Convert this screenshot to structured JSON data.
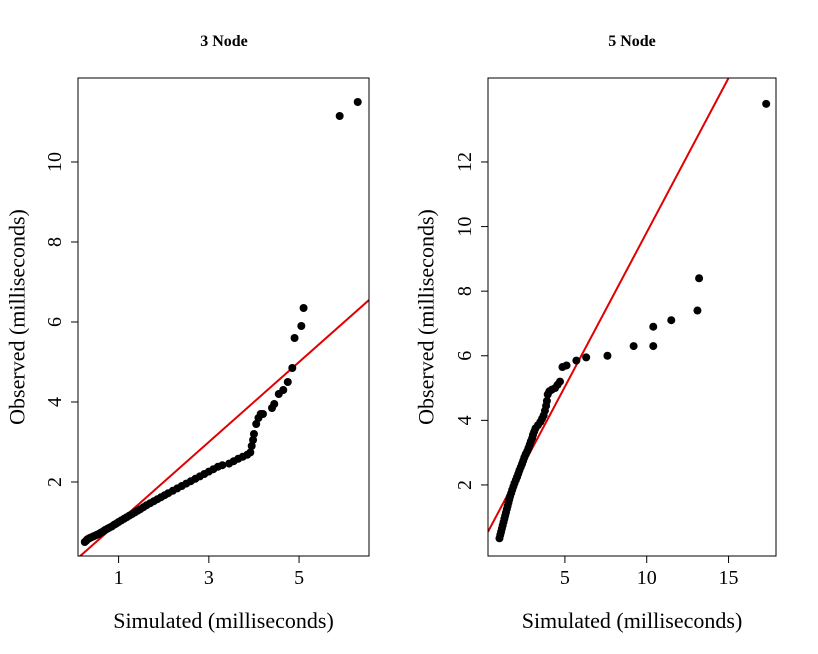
{
  "chart_data": [
    {
      "type": "scatter",
      "title": "3 Node",
      "xlabel": "Simulated (milliseconds)",
      "ylabel": "Observed (milliseconds)",
      "xlim": [
        0.1,
        6.55
      ],
      "ylim": [
        0.15,
        12.1
      ],
      "xticks": [
        1,
        3,
        5
      ],
      "yticks": [
        2,
        4,
        6,
        8,
        10
      ],
      "grid": false,
      "reference_line": {
        "color": "#e00000",
        "points": [
          [
            0.1,
            0.1
          ],
          [
            6.55,
            6.55
          ]
        ]
      },
      "point_color": "#000000",
      "series": [
        {
          "points": [
            [
              0.25,
              0.5
            ],
            [
              0.28,
              0.53
            ],
            [
              0.3,
              0.56
            ],
            [
              0.33,
              0.58
            ],
            [
              0.36,
              0.6
            ],
            [
              0.4,
              0.62
            ],
            [
              0.44,
              0.64
            ],
            [
              0.48,
              0.66
            ],
            [
              0.52,
              0.68
            ],
            [
              0.56,
              0.7
            ],
            [
              0.6,
              0.73
            ],
            [
              0.65,
              0.76
            ],
            [
              0.7,
              0.8
            ],
            [
              0.75,
              0.83
            ],
            [
              0.8,
              0.86
            ],
            [
              0.85,
              0.89
            ],
            [
              0.9,
              0.93
            ],
            [
              0.95,
              0.96
            ],
            [
              1.0,
              1.0
            ],
            [
              1.06,
              1.04
            ],
            [
              1.12,
              1.08
            ],
            [
              1.18,
              1.12
            ],
            [
              1.24,
              1.16
            ],
            [
              1.3,
              1.2
            ],
            [
              1.36,
              1.24
            ],
            [
              1.42,
              1.28
            ],
            [
              1.48,
              1.32
            ],
            [
              1.55,
              1.37
            ],
            [
              1.62,
              1.42
            ],
            [
              1.7,
              1.47
            ],
            [
              1.78,
              1.52
            ],
            [
              1.86,
              1.57
            ],
            [
              1.94,
              1.62
            ],
            [
              2.02,
              1.67
            ],
            [
              2.1,
              1.72
            ],
            [
              2.2,
              1.78
            ],
            [
              2.3,
              1.84
            ],
            [
              2.4,
              1.9
            ],
            [
              2.5,
              1.96
            ],
            [
              2.6,
              2.02
            ],
            [
              2.7,
              2.08
            ],
            [
              2.8,
              2.14
            ],
            [
              2.9,
              2.2
            ],
            [
              3.0,
              2.26
            ],
            [
              3.1,
              2.32
            ],
            [
              3.2,
              2.38
            ],
            [
              3.3,
              2.42
            ],
            [
              3.45,
              2.46
            ],
            [
              3.55,
              2.52
            ],
            [
              3.65,
              2.58
            ],
            [
              3.75,
              2.63
            ],
            [
              3.85,
              2.68
            ],
            [
              3.92,
              2.74
            ],
            [
              3.95,
              2.9
            ],
            [
              3.98,
              3.05
            ],
            [
              4.0,
              3.2
            ],
            [
              4.05,
              3.45
            ],
            [
              4.1,
              3.6
            ],
            [
              4.15,
              3.7
            ],
            [
              4.2,
              3.7
            ],
            [
              4.4,
              3.85
            ],
            [
              4.45,
              3.95
            ],
            [
              4.55,
              4.2
            ],
            [
              4.65,
              4.3
            ],
            [
              4.75,
              4.5
            ],
            [
              4.85,
              4.85
            ],
            [
              4.9,
              5.6
            ],
            [
              5.05,
              5.9
            ],
            [
              5.1,
              6.35
            ],
            [
              5.9,
              11.15
            ],
            [
              6.3,
              11.5
            ]
          ]
        }
      ]
    },
    {
      "type": "scatter",
      "title": "5 Node",
      "xlabel": "Simulated (milliseconds)",
      "ylabel": "Observed (milliseconds)",
      "xlim": [
        0.3,
        17.9
      ],
      "ylim": [
        -0.2,
        14.6
      ],
      "xticks": [
        5,
        10,
        15
      ],
      "yticks": [
        2,
        4,
        6,
        8,
        10,
        12
      ],
      "grid": false,
      "reference_line": {
        "color": "#e00000",
        "points": [
          [
            0.3,
            0.55
          ],
          [
            15,
            14.6
          ]
        ]
      },
      "point_color": "#000000",
      "series": [
        {
          "points": [
            [
              1.0,
              0.35
            ],
            [
              1.05,
              0.45
            ],
            [
              1.1,
              0.55
            ],
            [
              1.15,
              0.65
            ],
            [
              1.2,
              0.75
            ],
            [
              1.25,
              0.85
            ],
            [
              1.3,
              0.95
            ],
            [
              1.35,
              1.05
            ],
            [
              1.4,
              1.15
            ],
            [
              1.45,
              1.25
            ],
            [
              1.5,
              1.35
            ],
            [
              1.55,
              1.45
            ],
            [
              1.6,
              1.55
            ],
            [
              1.65,
              1.65
            ],
            [
              1.72,
              1.75
            ],
            [
              1.78,
              1.85
            ],
            [
              1.85,
              1.95
            ],
            [
              1.92,
              2.05
            ],
            [
              2.0,
              2.15
            ],
            [
              2.08,
              2.25
            ],
            [
              2.15,
              2.35
            ],
            [
              2.22,
              2.45
            ],
            [
              2.3,
              2.55
            ],
            [
              2.38,
              2.65
            ],
            [
              2.45,
              2.75
            ],
            [
              2.52,
              2.85
            ],
            [
              2.6,
              2.95
            ],
            [
              2.7,
              3.05
            ],
            [
              2.78,
              3.15
            ],
            [
              2.85,
              3.25
            ],
            [
              2.92,
              3.35
            ],
            [
              3.0,
              3.45
            ],
            [
              3.05,
              3.55
            ],
            [
              3.12,
              3.65
            ],
            [
              3.2,
              3.75
            ],
            [
              3.35,
              3.85
            ],
            [
              3.5,
              3.95
            ],
            [
              3.6,
              4.05
            ],
            [
              3.7,
              4.15
            ],
            [
              3.78,
              4.3
            ],
            [
              3.85,
              4.45
            ],
            [
              3.9,
              4.6
            ],
            [
              3.95,
              4.8
            ],
            [
              4.05,
              4.9
            ],
            [
              4.2,
              4.95
            ],
            [
              4.4,
              5.0
            ],
            [
              4.55,
              5.1
            ],
            [
              4.7,
              5.2
            ],
            [
              4.85,
              5.65
            ],
            [
              5.1,
              5.7
            ],
            [
              5.7,
              5.85
            ],
            [
              6.3,
              5.95
            ],
            [
              7.6,
              6.0
            ],
            [
              9.2,
              6.3
            ],
            [
              10.4,
              6.3
            ],
            [
              10.4,
              6.9
            ],
            [
              11.5,
              7.1
            ],
            [
              13.1,
              7.4
            ],
            [
              13.2,
              8.4
            ],
            [
              17.3,
              13.8
            ]
          ]
        }
      ]
    }
  ]
}
